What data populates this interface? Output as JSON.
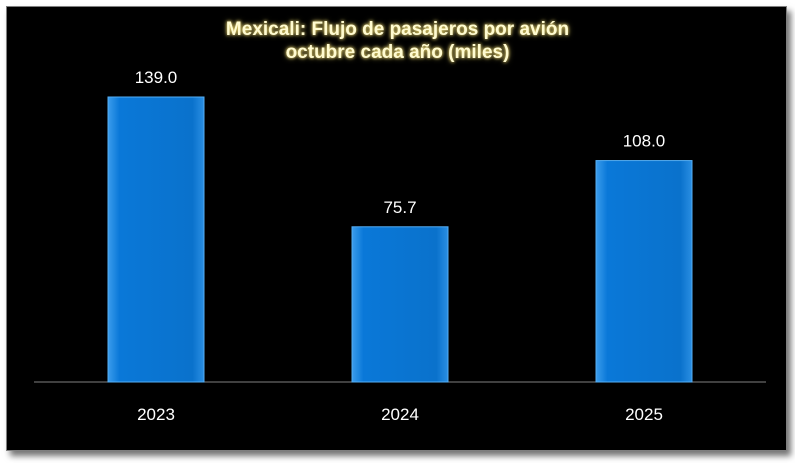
{
  "chart_data": {
    "type": "bar",
    "title_lines": [
      "Mexicali: Flujo de pasajeros por avión",
      "octubre cada año (miles)"
    ],
    "categories": [
      "2023",
      "2024",
      "2025"
    ],
    "values": [
      139.0,
      75.7,
      108.0
    ],
    "data_labels": [
      "139.0",
      "75.7",
      "108.0"
    ],
    "xlabel": "",
    "ylabel": "",
    "grid": false,
    "legend": "none",
    "colors": {
      "bar": "#0a78d8",
      "bar_edge": "#54aef5",
      "background": "#000000",
      "title": "#fffbd0",
      "axis": "#808080"
    }
  }
}
